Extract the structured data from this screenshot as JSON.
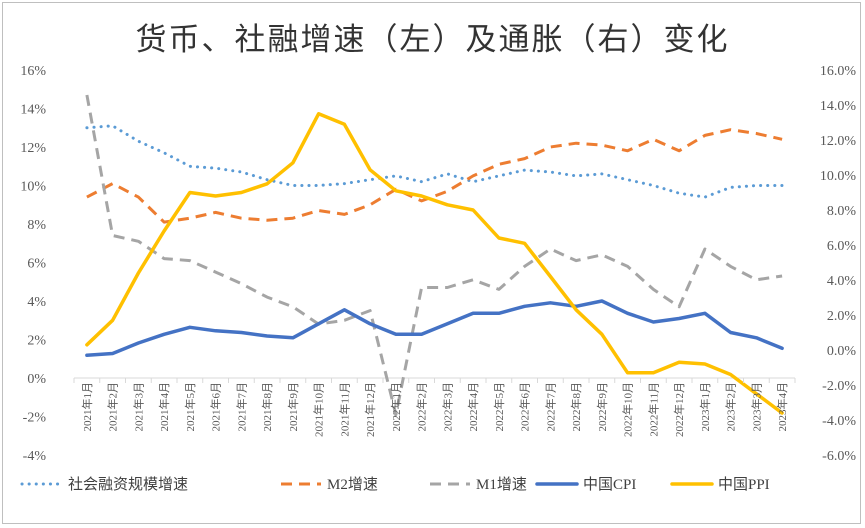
{
  "chart_data": {
    "type": "line",
    "title": "货币、社融增速（左）及通胀（右）变化",
    "categories": [
      "2021年1月",
      "2021年2月",
      "2021年3月",
      "2021年4月",
      "2021年5月",
      "2021年6月",
      "2021年7月",
      "2021年8月",
      "2021年9月",
      "2021年10月",
      "2021年11月",
      "2021年12月",
      "2022年1月",
      "2022年2月",
      "2022年3月",
      "2022年4月",
      "2022年5月",
      "2022年6月",
      "2022年7月",
      "2022年8月",
      "2022年9月",
      "2022年10月",
      "2022年11月",
      "2022年12月",
      "2023年1月",
      "2023年2月",
      "2023年3月",
      "2023年4月"
    ],
    "y_left": {
      "min": -4,
      "max": 16,
      "step": 2,
      "tick_labels": [
        "-4%",
        "-2%",
        "0%",
        "2%",
        "4%",
        "6%",
        "8%",
        "10%",
        "12%",
        "14%",
        "16%"
      ]
    },
    "y_right": {
      "min": -6,
      "max": 16,
      "step": 2,
      "tick_labels": [
        "-6.0%",
        "-4.0%",
        "-2.0%",
        "0.0%",
        "2.0%",
        "4.0%",
        "6.0%",
        "8.0%",
        "10.0%",
        "12.0%",
        "14.0%",
        "16.0%"
      ]
    },
    "legend_position": "bottom",
    "grid": false,
    "series": [
      {
        "name": "社会融资规模增速",
        "axis": "left",
        "color": "#5b9bd5",
        "style": "dotted",
        "values": [
          13.0,
          13.1,
          12.3,
          11.7,
          11.0,
          10.9,
          10.7,
          10.3,
          10.0,
          10.0,
          10.1,
          10.3,
          10.5,
          10.2,
          10.6,
          10.2,
          10.5,
          10.8,
          10.7,
          10.5,
          10.6,
          10.3,
          10.0,
          9.6,
          9.4,
          9.9,
          10.0,
          10.0
        ]
      },
      {
        "name": "M2增速",
        "axis": "left",
        "color": "#ed7d31",
        "style": "dashed",
        "values": [
          9.4,
          10.1,
          9.4,
          8.1,
          8.3,
          8.6,
          8.3,
          8.2,
          8.3,
          8.7,
          8.5,
          9.0,
          9.8,
          9.2,
          9.7,
          10.5,
          11.1,
          11.4,
          12.0,
          12.2,
          12.1,
          11.8,
          12.4,
          11.8,
          12.6,
          12.9,
          12.7,
          12.4
        ]
      },
      {
        "name": "M1增速",
        "axis": "left",
        "color": "#a5a5a5",
        "style": "dashed",
        "values": [
          14.7,
          7.4,
          7.1,
          6.2,
          6.1,
          5.5,
          4.9,
          4.2,
          3.7,
          2.8,
          3.0,
          3.5,
          -1.9,
          4.7,
          4.7,
          5.1,
          4.6,
          5.8,
          6.7,
          6.1,
          6.4,
          5.8,
          4.6,
          3.7,
          6.7,
          5.8,
          5.1,
          5.3
        ]
      },
      {
        "name": "中国CPI",
        "axis": "right",
        "color": "#4472c4",
        "style": "solid",
        "values": [
          -0.3,
          -0.2,
          0.4,
          0.9,
          1.3,
          1.1,
          1.0,
          0.8,
          0.7,
          1.5,
          2.3,
          1.5,
          0.9,
          0.9,
          1.5,
          2.1,
          2.1,
          2.5,
          2.7,
          2.5,
          2.8,
          2.1,
          1.6,
          1.8,
          2.1,
          1.0,
          0.7,
          0.1
        ]
      },
      {
        "name": "中国PPI",
        "axis": "right",
        "color": "#ffc000",
        "style": "solid",
        "values": [
          0.3,
          1.7,
          4.4,
          6.8,
          9.0,
          8.8,
          9.0,
          9.5,
          10.7,
          13.5,
          12.9,
          10.3,
          9.1,
          8.8,
          8.3,
          8.0,
          6.4,
          6.1,
          4.2,
          2.3,
          0.9,
          -1.3,
          -1.3,
          -0.7,
          -0.8,
          -1.4,
          -2.5,
          -3.6
        ]
      }
    ]
  }
}
